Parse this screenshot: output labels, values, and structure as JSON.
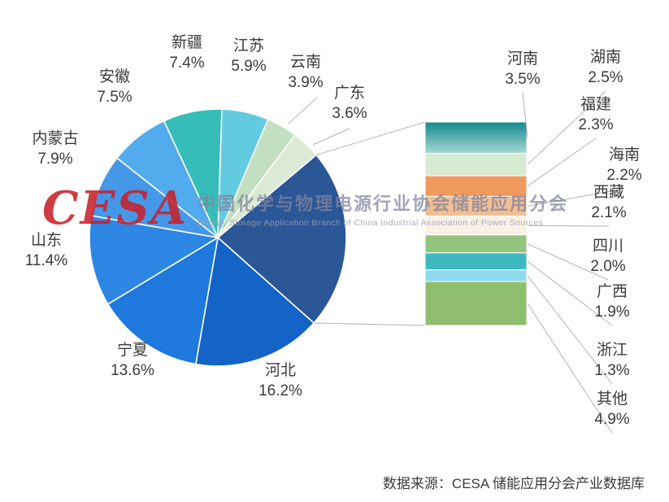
{
  "watermark": {
    "logo": "CESA",
    "cn": "中国化学与物理电源行业协会储能应用分会",
    "en": "Energy Storage Application Branch of China Industrial Association of Power Sources"
  },
  "source_note": "数据来源：CESA 储能应用分会产业数据库",
  "chart_data": {
    "type": "pie",
    "subtype": "bar-of-pie",
    "unit": "%",
    "legend_position": "none",
    "grid": false,
    "pie_slices": [
      {
        "label": "河北",
        "value": 16.2,
        "color": "#1463C6"
      },
      {
        "label": "宁夏",
        "value": 13.6,
        "color": "#1F78DB"
      },
      {
        "label": "山东",
        "value": 11.4,
        "color": "#2E86E4"
      },
      {
        "label": "内蒙古",
        "value": 7.9,
        "color": "#4597E8"
      },
      {
        "label": "安徽",
        "value": 7.5,
        "color": "#51ABEC"
      },
      {
        "label": "新疆",
        "value": 7.4,
        "color": "#36BDB9"
      },
      {
        "label": "江苏",
        "value": 5.9,
        "color": "#62CBE0"
      },
      {
        "label": "云南",
        "value": 3.9,
        "color": "#C2DFC0"
      },
      {
        "label": "广东",
        "value": 3.6,
        "color": "#DAEAD4"
      }
    ],
    "aggregate_slice": {
      "label": "",
      "color": "#2B5796"
    },
    "bar_slices": [
      {
        "label": "河南",
        "value": 3.5,
        "color": "#12898E",
        "color2": "#A8D8D3"
      },
      {
        "label": "湖南",
        "value": 2.5,
        "color": "#D7E9D1"
      },
      {
        "label": "福建",
        "value": 2.3,
        "color": "#EF9A5C"
      },
      {
        "label": "海南",
        "value": 2.2,
        "color": "#F4BE93"
      },
      {
        "label": "西藏",
        "value": 2.1,
        "color": "#FAF1E5"
      },
      {
        "label": "四川",
        "value": 2.0,
        "color": "#93C57F"
      },
      {
        "label": "广西",
        "value": 1.9,
        "color": "#3FB8C0"
      },
      {
        "label": "浙江",
        "value": 1.3,
        "color": "#8FD9EC"
      },
      {
        "label": "其他",
        "value": 4.9,
        "color": "#8FBE6E"
      }
    ]
  }
}
